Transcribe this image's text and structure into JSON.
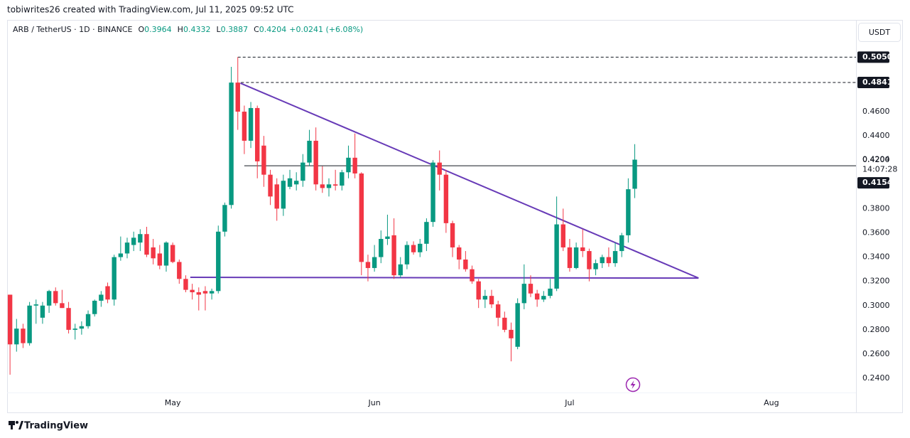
{
  "credit": "tobiwrites26 created with TradingView.com, Jul 11, 2025 09:52 UTC",
  "footer": "TradingView",
  "currency_button": "USDT",
  "chart_data": {
    "type": "candlestick",
    "symbol": "ARB / TetherUS · 1D · BINANCE",
    "ohlc_text": [
      {
        "key": "O",
        "text": "0.3964"
      },
      {
        "key": "H",
        "text": "0.4332"
      },
      {
        "key": "L",
        "text": "0.3887"
      },
      {
        "key": "C",
        "text": "0.4204"
      }
    ],
    "change_text": "+0.0241 (+6.08%)",
    "up_color": "#089981",
    "down_color": "#f23645",
    "open": [
      0.309,
      0.268,
      0.281,
      0.269,
      0.3,
      0.29,
      0.3,
      0.312,
      0.302,
      0.298,
      0.28,
      0.281,
      0.283,
      0.293,
      0.304,
      0.316,
      0.305,
      0.34,
      0.343,
      0.35,
      0.352,
      0.359,
      0.348,
      0.343,
      0.333,
      0.35,
      0.336,
      0.322,
      0.313,
      0.311,
      0.312,
      0.31,
      0.312,
      0.361,
      0.383,
      0.484,
      0.46,
      0.436,
      0.463,
      0.432,
      0.408,
      0.4,
      0.38,
      0.398,
      0.4,
      0.403,
      0.418,
      0.436,
      0.4,
      0.397,
      0.4,
      0.399,
      0.41,
      0.422,
      0.409,
      0.336,
      0.331,
      0.34,
      0.355,
      0.358,
      0.325,
      0.334,
      0.35,
      0.344,
      0.351,
      0.369,
      0.418,
      0.408,
      0.368,
      0.348,
      0.338,
      0.33,
      0.32,
      0.305,
      0.308,
      0.301,
      0.29,
      0.28,
      0.266,
      0.302,
      0.318,
      0.31,
      0.305,
      0.308,
      0.314,
      0.367,
      0.348,
      0.331,
      0.348,
      0.345,
      0.33,
      0.335,
      0.34,
      0.335,
      0.345,
      0.358,
      0.3964
    ],
    "high": [
      0.309,
      0.289,
      0.285,
      0.303,
      0.305,
      0.303,
      0.313,
      0.315,
      0.313,
      0.303,
      0.285,
      0.287,
      0.296,
      0.305,
      0.312,
      0.319,
      0.342,
      0.357,
      0.356,
      0.361,
      0.363,
      0.365,
      0.355,
      0.35,
      0.353,
      0.352,
      0.338,
      0.325,
      0.318,
      0.315,
      0.316,
      0.314,
      0.366,
      0.385,
      0.497,
      0.505,
      0.465,
      0.468,
      0.465,
      0.44,
      0.412,
      0.405,
      0.408,
      0.412,
      0.41,
      0.425,
      0.445,
      0.447,
      0.415,
      0.405,
      0.412,
      0.412,
      0.432,
      0.442,
      0.41,
      0.342,
      0.35,
      0.362,
      0.375,
      0.372,
      0.34,
      0.353,
      0.353,
      0.355,
      0.372,
      0.42,
      0.428,
      0.412,
      0.37,
      0.35,
      0.345,
      0.333,
      0.322,
      0.313,
      0.313,
      0.304,
      0.295,
      0.286,
      0.306,
      0.334,
      0.325,
      0.313,
      0.312,
      0.322,
      0.39,
      0.38,
      0.355,
      0.352,
      0.363,
      0.347,
      0.338,
      0.342,
      0.348,
      0.352,
      0.36,
      0.405,
      0.4332
    ],
    "low": [
      0.243,
      0.262,
      0.265,
      0.267,
      0.285,
      0.285,
      0.294,
      0.3,
      0.298,
      0.277,
      0.272,
      0.276,
      0.281,
      0.291,
      0.299,
      0.302,
      0.3,
      0.337,
      0.339,
      0.345,
      0.345,
      0.34,
      0.334,
      0.33,
      0.328,
      0.335,
      0.318,
      0.311,
      0.305,
      0.296,
      0.296,
      0.305,
      0.31,
      0.357,
      0.38,
      0.445,
      0.425,
      0.43,
      0.405,
      0.398,
      0.383,
      0.37,
      0.374,
      0.396,
      0.395,
      0.398,
      0.415,
      0.395,
      0.393,
      0.39,
      0.395,
      0.395,
      0.405,
      0.405,
      0.325,
      0.32,
      0.328,
      0.335,
      0.35,
      0.322,
      0.323,
      0.33,
      0.342,
      0.34,
      0.345,
      0.365,
      0.395,
      0.36,
      0.34,
      0.33,
      0.328,
      0.318,
      0.298,
      0.298,
      0.298,
      0.283,
      0.278,
      0.254,
      0.264,
      0.297,
      0.307,
      0.299,
      0.303,
      0.306,
      0.312,
      0.345,
      0.328,
      0.33,
      0.34,
      0.32,
      0.325,
      0.331,
      0.332,
      0.332,
      0.34,
      0.352,
      0.3887
    ],
    "close": [
      0.268,
      0.281,
      0.269,
      0.3,
      0.301,
      0.3,
      0.312,
      0.302,
      0.298,
      0.28,
      0.281,
      0.283,
      0.293,
      0.304,
      0.309,
      0.305,
      0.34,
      0.343,
      0.352,
      0.356,
      0.359,
      0.342,
      0.339,
      0.333,
      0.352,
      0.336,
      0.322,
      0.313,
      0.311,
      0.309,
      0.31,
      0.312,
      0.361,
      0.383,
      0.484,
      0.46,
      0.436,
      0.463,
      0.419,
      0.408,
      0.39,
      0.38,
      0.403,
      0.405,
      0.403,
      0.418,
      0.436,
      0.4,
      0.397,
      0.4,
      0.399,
      0.41,
      0.422,
      0.409,
      0.336,
      0.331,
      0.34,
      0.355,
      0.357,
      0.325,
      0.334,
      0.35,
      0.344,
      0.351,
      0.369,
      0.418,
      0.408,
      0.368,
      0.348,
      0.338,
      0.33,
      0.32,
      0.305,
      0.308,
      0.301,
      0.29,
      0.28,
      0.273,
      0.302,
      0.318,
      0.31,
      0.305,
      0.308,
      0.314,
      0.367,
      0.348,
      0.331,
      0.348,
      0.345,
      0.33,
      0.335,
      0.34,
      0.335,
      0.345,
      0.358,
      0.396,
      0.4204
    ],
    "xlim": [
      -0.45,
      130
    ],
    "xticks": [
      {
        "value": 25,
        "label": "May"
      },
      {
        "value": 56,
        "label": "Jun"
      },
      {
        "value": 86,
        "label": "Jul"
      },
      {
        "value": 117,
        "label": "Aug"
      }
    ],
    "ylim": [
      0.2283,
      0.5357
    ],
    "yticks": [
      {
        "value": 0.24,
        "label": "0.2400"
      },
      {
        "value": 0.26,
        "label": "0.2600"
      },
      {
        "value": 0.28,
        "label": "0.2800"
      },
      {
        "value": 0.3,
        "label": "0.3000"
      },
      {
        "value": 0.32,
        "label": "0.3200"
      },
      {
        "value": 0.34,
        "label": "0.3400"
      },
      {
        "value": 0.36,
        "label": "0.3600"
      },
      {
        "value": 0.38,
        "label": "0.3800"
      },
      {
        "value": 0.4,
        "label": "0.4000"
      },
      {
        "value": 0.42,
        "label": "0.4200"
      },
      {
        "value": 0.44,
        "label": "0.4400"
      },
      {
        "value": 0.46,
        "label": "0.4600"
      }
    ],
    "grid": false,
    "levels": [
      {
        "value": 0.505,
        "label": "0.5050",
        "style": "dashed",
        "from": 35
      },
      {
        "value": 0.4841,
        "label": "0.4841",
        "style": "dashed",
        "from": 35.5
      },
      {
        "value": 0.4154,
        "label": "0.4154",
        "style": "solid",
        "from": 36
      }
    ],
    "last_price": {
      "value": 0.4204,
      "label": "0.4204",
      "countdown": "14:07:28"
    },
    "trendlines": [
      {
        "color": "#673ab7",
        "points": [
          [
            35.4,
            0.4835
          ],
          [
            105.8,
            0.3227
          ]
        ]
      },
      {
        "color": "#673ab7",
        "points": [
          [
            27.7,
            0.3233
          ],
          [
            105.8,
            0.3227
          ]
        ]
      }
    ]
  }
}
